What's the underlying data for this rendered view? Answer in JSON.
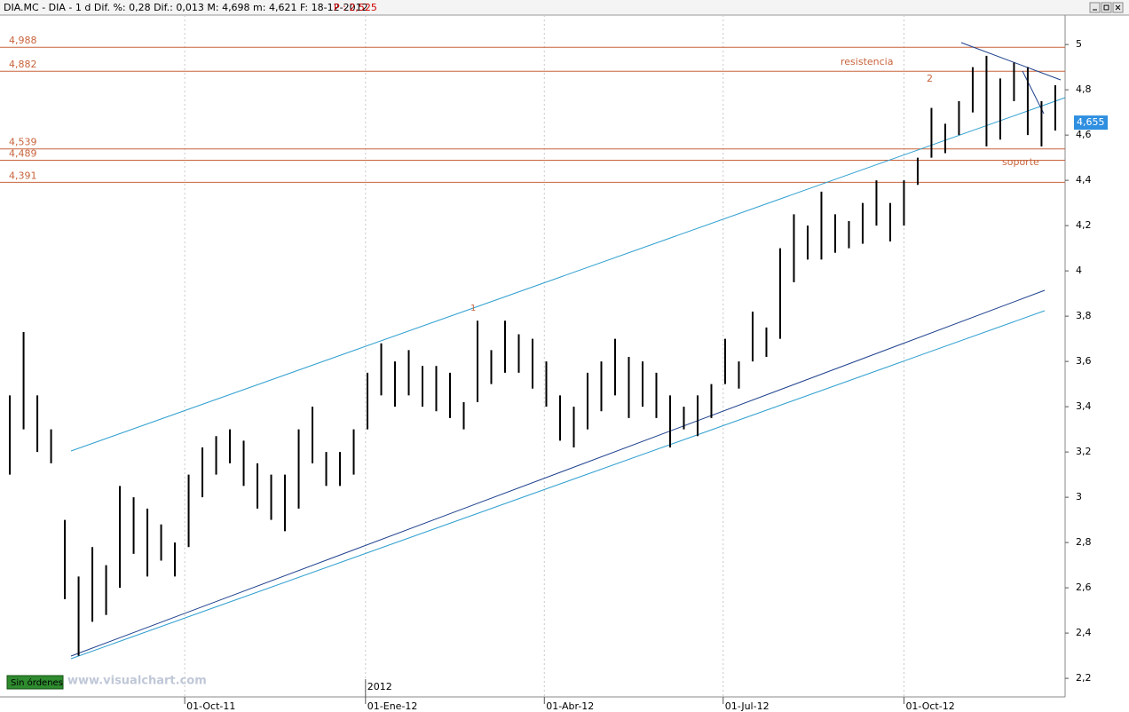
{
  "header": {
    "text": "DIA.MC - DIA - 1 d Dif. %: 0,28 Dif.: 0,013 M: 4,698 m: 4,621 F: 18-12-2012",
    "p": "P : 2,525"
  },
  "status": {
    "orders": "Sin órdenes",
    "watermark": "www.visualchart.com"
  },
  "chart_data": {
    "type": "ohlc",
    "xlim": [
      "2011-06-29",
      "2012-12-22"
    ],
    "ylim": [
      2.118,
      5.13
    ],
    "xticks": [
      {
        "value": "2011-10-01",
        "label": "01-Oct-11"
      },
      {
        "value": "2012-01-01",
        "label": "01-Ene-12"
      },
      {
        "value": "2012-04-01",
        "label": "01-Abr-12"
      },
      {
        "value": "2012-07-01",
        "label": "01-Jul-12"
      },
      {
        "value": "2012-10-01",
        "label": "01-Oct-12"
      }
    ],
    "year_marker": {
      "value": "2012-01-01",
      "label": "2012"
    },
    "yticks": [
      {
        "value": 2.2,
        "label": "2,2"
      },
      {
        "value": 2.4,
        "label": "2,4"
      },
      {
        "value": 2.6,
        "label": "2,6"
      },
      {
        "value": 2.8,
        "label": "2,8"
      },
      {
        "value": 3,
        "label": "3"
      },
      {
        "value": 3.2,
        "label": "3,2"
      },
      {
        "value": 3.4,
        "label": "3,4"
      },
      {
        "value": 3.6,
        "label": "3,6"
      },
      {
        "value": 3.8,
        "label": "3,8"
      },
      {
        "value": 4,
        "label": "4"
      },
      {
        "value": 4.2,
        "label": "4,2"
      },
      {
        "value": 4.4,
        "label": "4,4"
      },
      {
        "value": 4.6,
        "label": "4,6"
      },
      {
        "value": 4.8,
        "label": "4,8"
      },
      {
        "value": 5,
        "label": "5"
      }
    ],
    "grid": true,
    "levels": [
      {
        "value": 4.988,
        "label": "4,988"
      },
      {
        "value": 4.882,
        "label": "4,882"
      },
      {
        "value": 4.539,
        "label": "4,539"
      },
      {
        "value": 4.489,
        "label": "4,489"
      },
      {
        "value": 4.391,
        "label": "4,391"
      }
    ],
    "level_color": "#c8643c",
    "last_price": {
      "value": 4.655,
      "label": "4,655"
    },
    "annotations": {
      "resistance": "resistencia",
      "support": "soporte",
      "one": "1",
      "two": "2"
    },
    "series": [
      {
        "color": "#000000",
        "x": [
          "2011-07-04",
          "2011-07-11",
          "2011-07-18",
          "2011-07-25",
          "2011-08-01",
          "2011-08-08",
          "2011-08-15",
          "2011-08-22",
          "2011-08-29",
          "2011-09-05",
          "2011-09-12",
          "2011-09-19",
          "2011-09-26",
          "2011-10-03",
          "2011-10-10",
          "2011-10-17",
          "2011-10-24",
          "2011-10-31",
          "2011-11-07",
          "2011-11-14",
          "2011-11-21",
          "2011-11-28",
          "2011-12-05",
          "2011-12-12",
          "2011-12-19",
          "2011-12-26",
          "2012-01-02",
          "2012-01-09",
          "2012-01-16",
          "2012-01-23",
          "2012-01-30",
          "2012-02-06",
          "2012-02-13",
          "2012-02-20",
          "2012-02-27",
          "2012-03-05",
          "2012-03-12",
          "2012-03-19",
          "2012-03-26",
          "2012-04-02",
          "2012-04-09",
          "2012-04-16",
          "2012-04-23",
          "2012-04-30",
          "2012-05-07",
          "2012-05-14",
          "2012-05-21",
          "2012-05-28",
          "2012-06-04",
          "2012-06-11",
          "2012-06-18",
          "2012-06-25",
          "2012-07-02",
          "2012-07-09",
          "2012-07-16",
          "2012-07-23",
          "2012-07-30",
          "2012-08-06",
          "2012-08-13",
          "2012-08-20",
          "2012-08-27",
          "2012-09-03",
          "2012-09-10",
          "2012-09-17",
          "2012-09-24",
          "2012-10-01",
          "2012-10-08",
          "2012-10-15",
          "2012-10-22",
          "2012-10-29",
          "2012-11-05",
          "2012-11-12",
          "2012-11-19",
          "2012-11-26",
          "2012-12-03",
          "2012-12-10",
          "2012-12-17"
        ],
        "high": [
          3.45,
          3.73,
          3.45,
          3.3,
          2.9,
          2.65,
          2.78,
          2.7,
          3.05,
          3.0,
          2.95,
          2.88,
          2.8,
          3.1,
          3.22,
          3.27,
          3.3,
          3.25,
          3.15,
          3.1,
          3.1,
          3.3,
          3.4,
          3.2,
          3.2,
          3.3,
          3.55,
          3.68,
          3.6,
          3.65,
          3.58,
          3.58,
          3.55,
          3.42,
          3.78,
          3.65,
          3.78,
          3.72,
          3.7,
          3.6,
          3.45,
          3.4,
          3.55,
          3.6,
          3.7,
          3.62,
          3.6,
          3.55,
          3.45,
          3.4,
          3.45,
          3.5,
          3.7,
          3.6,
          3.82,
          3.75,
          4.1,
          4.25,
          4.2,
          4.35,
          4.25,
          4.22,
          4.3,
          4.4,
          4.3,
          4.4,
          4.5,
          4.72,
          4.65,
          4.75,
          4.9,
          4.95,
          4.85,
          4.92,
          4.9,
          4.75,
          4.82
        ],
        "low": [
          3.1,
          3.3,
          3.2,
          3.15,
          2.55,
          2.3,
          2.45,
          2.48,
          2.6,
          2.75,
          2.65,
          2.72,
          2.65,
          2.78,
          3.0,
          3.1,
          3.15,
          3.05,
          2.95,
          2.9,
          2.85,
          2.95,
          3.15,
          3.05,
          3.05,
          3.1,
          3.3,
          3.45,
          3.4,
          3.45,
          3.4,
          3.38,
          3.35,
          3.3,
          3.42,
          3.5,
          3.55,
          3.55,
          3.48,
          3.4,
          3.25,
          3.22,
          3.3,
          3.38,
          3.45,
          3.35,
          3.4,
          3.35,
          3.22,
          3.3,
          3.27,
          3.35,
          3.5,
          3.48,
          3.6,
          3.62,
          3.7,
          3.95,
          4.05,
          4.05,
          4.08,
          4.1,
          4.12,
          4.2,
          4.13,
          4.2,
          4.38,
          4.5,
          4.52,
          4.6,
          4.7,
          4.55,
          4.58,
          4.75,
          4.6,
          4.55,
          4.62
        ]
      }
    ]
  }
}
